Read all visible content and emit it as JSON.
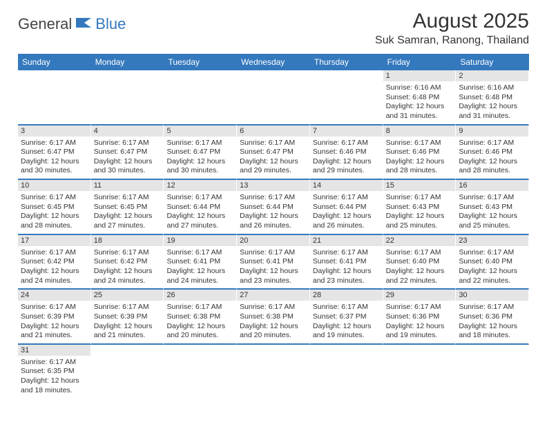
{
  "logo": {
    "general": "General",
    "blue": "Blue"
  },
  "title": "August 2025",
  "location": "Suk Samran, Ranong, Thailand",
  "colors": {
    "header_bg": "#3478bd",
    "daynum_bg": "#e5e5e5",
    "text": "#333333",
    "logo_blue": "#3478bd"
  },
  "weekdays": [
    "Sunday",
    "Monday",
    "Tuesday",
    "Wednesday",
    "Thursday",
    "Friday",
    "Saturday"
  ],
  "weeks": [
    [
      null,
      null,
      null,
      null,
      null,
      {
        "n": "1",
        "sr": "Sunrise: 6:16 AM",
        "ss": "Sunset: 6:48 PM",
        "dl": "Daylight: 12 hours and 31 minutes."
      },
      {
        "n": "2",
        "sr": "Sunrise: 6:16 AM",
        "ss": "Sunset: 6:48 PM",
        "dl": "Daylight: 12 hours and 31 minutes."
      }
    ],
    [
      {
        "n": "3",
        "sr": "Sunrise: 6:17 AM",
        "ss": "Sunset: 6:47 PM",
        "dl": "Daylight: 12 hours and 30 minutes."
      },
      {
        "n": "4",
        "sr": "Sunrise: 6:17 AM",
        "ss": "Sunset: 6:47 PM",
        "dl": "Daylight: 12 hours and 30 minutes."
      },
      {
        "n": "5",
        "sr": "Sunrise: 6:17 AM",
        "ss": "Sunset: 6:47 PM",
        "dl": "Daylight: 12 hours and 30 minutes."
      },
      {
        "n": "6",
        "sr": "Sunrise: 6:17 AM",
        "ss": "Sunset: 6:47 PM",
        "dl": "Daylight: 12 hours and 29 minutes."
      },
      {
        "n": "7",
        "sr": "Sunrise: 6:17 AM",
        "ss": "Sunset: 6:46 PM",
        "dl": "Daylight: 12 hours and 29 minutes."
      },
      {
        "n": "8",
        "sr": "Sunrise: 6:17 AM",
        "ss": "Sunset: 6:46 PM",
        "dl": "Daylight: 12 hours and 28 minutes."
      },
      {
        "n": "9",
        "sr": "Sunrise: 6:17 AM",
        "ss": "Sunset: 6:46 PM",
        "dl": "Daylight: 12 hours and 28 minutes."
      }
    ],
    [
      {
        "n": "10",
        "sr": "Sunrise: 6:17 AM",
        "ss": "Sunset: 6:45 PM",
        "dl": "Daylight: 12 hours and 28 minutes."
      },
      {
        "n": "11",
        "sr": "Sunrise: 6:17 AM",
        "ss": "Sunset: 6:45 PM",
        "dl": "Daylight: 12 hours and 27 minutes."
      },
      {
        "n": "12",
        "sr": "Sunrise: 6:17 AM",
        "ss": "Sunset: 6:44 PM",
        "dl": "Daylight: 12 hours and 27 minutes."
      },
      {
        "n": "13",
        "sr": "Sunrise: 6:17 AM",
        "ss": "Sunset: 6:44 PM",
        "dl": "Daylight: 12 hours and 26 minutes."
      },
      {
        "n": "14",
        "sr": "Sunrise: 6:17 AM",
        "ss": "Sunset: 6:44 PM",
        "dl": "Daylight: 12 hours and 26 minutes."
      },
      {
        "n": "15",
        "sr": "Sunrise: 6:17 AM",
        "ss": "Sunset: 6:43 PM",
        "dl": "Daylight: 12 hours and 25 minutes."
      },
      {
        "n": "16",
        "sr": "Sunrise: 6:17 AM",
        "ss": "Sunset: 6:43 PM",
        "dl": "Daylight: 12 hours and 25 minutes."
      }
    ],
    [
      {
        "n": "17",
        "sr": "Sunrise: 6:17 AM",
        "ss": "Sunset: 6:42 PM",
        "dl": "Daylight: 12 hours and 24 minutes."
      },
      {
        "n": "18",
        "sr": "Sunrise: 6:17 AM",
        "ss": "Sunset: 6:42 PM",
        "dl": "Daylight: 12 hours and 24 minutes."
      },
      {
        "n": "19",
        "sr": "Sunrise: 6:17 AM",
        "ss": "Sunset: 6:41 PM",
        "dl": "Daylight: 12 hours and 24 minutes."
      },
      {
        "n": "20",
        "sr": "Sunrise: 6:17 AM",
        "ss": "Sunset: 6:41 PM",
        "dl": "Daylight: 12 hours and 23 minutes."
      },
      {
        "n": "21",
        "sr": "Sunrise: 6:17 AM",
        "ss": "Sunset: 6:41 PM",
        "dl": "Daylight: 12 hours and 23 minutes."
      },
      {
        "n": "22",
        "sr": "Sunrise: 6:17 AM",
        "ss": "Sunset: 6:40 PM",
        "dl": "Daylight: 12 hours and 22 minutes."
      },
      {
        "n": "23",
        "sr": "Sunrise: 6:17 AM",
        "ss": "Sunset: 6:40 PM",
        "dl": "Daylight: 12 hours and 22 minutes."
      }
    ],
    [
      {
        "n": "24",
        "sr": "Sunrise: 6:17 AM",
        "ss": "Sunset: 6:39 PM",
        "dl": "Daylight: 12 hours and 21 minutes."
      },
      {
        "n": "25",
        "sr": "Sunrise: 6:17 AM",
        "ss": "Sunset: 6:39 PM",
        "dl": "Daylight: 12 hours and 21 minutes."
      },
      {
        "n": "26",
        "sr": "Sunrise: 6:17 AM",
        "ss": "Sunset: 6:38 PM",
        "dl": "Daylight: 12 hours and 20 minutes."
      },
      {
        "n": "27",
        "sr": "Sunrise: 6:17 AM",
        "ss": "Sunset: 6:38 PM",
        "dl": "Daylight: 12 hours and 20 minutes."
      },
      {
        "n": "28",
        "sr": "Sunrise: 6:17 AM",
        "ss": "Sunset: 6:37 PM",
        "dl": "Daylight: 12 hours and 19 minutes."
      },
      {
        "n": "29",
        "sr": "Sunrise: 6:17 AM",
        "ss": "Sunset: 6:36 PM",
        "dl": "Daylight: 12 hours and 19 minutes."
      },
      {
        "n": "30",
        "sr": "Sunrise: 6:17 AM",
        "ss": "Sunset: 6:36 PM",
        "dl": "Daylight: 12 hours and 18 minutes."
      }
    ],
    [
      {
        "n": "31",
        "sr": "Sunrise: 6:17 AM",
        "ss": "Sunset: 6:35 PM",
        "dl": "Daylight: 12 hours and 18 minutes."
      },
      null,
      null,
      null,
      null,
      null,
      null
    ]
  ]
}
